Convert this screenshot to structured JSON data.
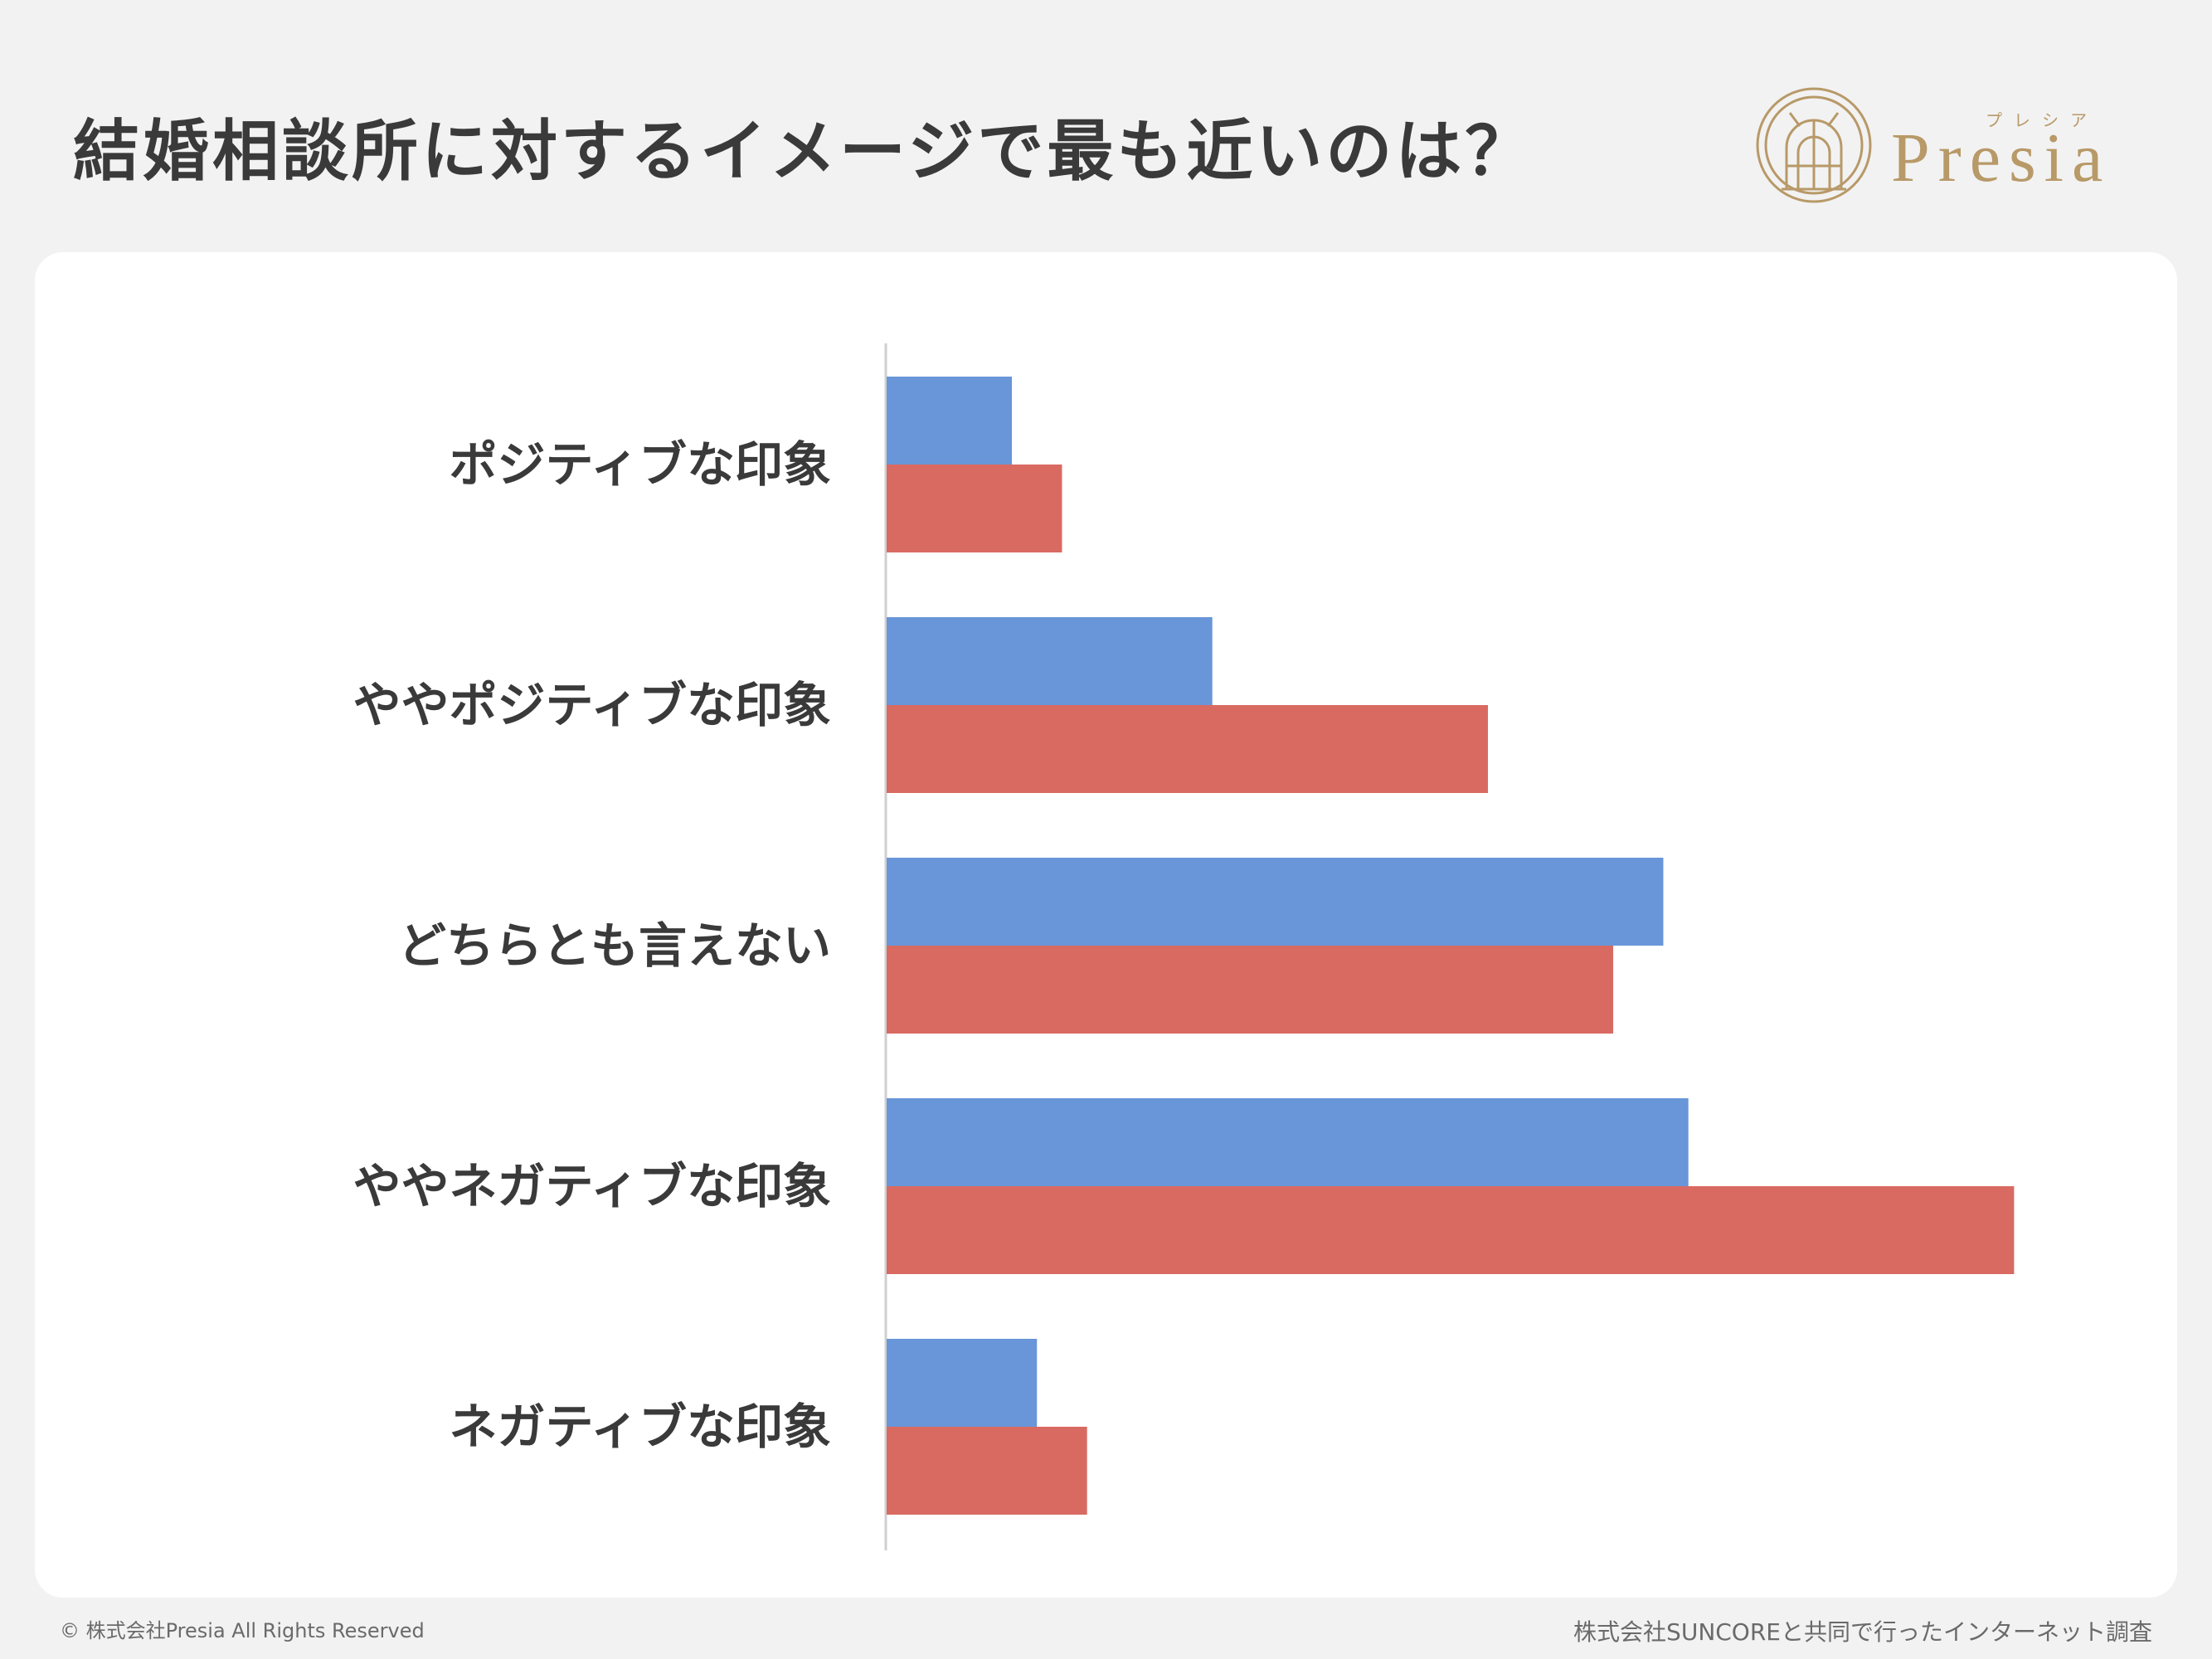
{
  "header": {
    "title": "結婚相談所に対するイメージで最も近いのは？",
    "logo_text": "Presia",
    "logo_kana": "プレシア"
  },
  "chart_data": {
    "type": "bar",
    "orientation": "horizontal",
    "categories": [
      "ポジティブな印象",
      "ややポジティブな印象",
      "どちらとも言えない",
      "ややネガティブな印象",
      "ネガティブな印象"
    ],
    "series": [
      {
        "color": "#6896d8",
        "values": [
          5,
          13,
          31,
          32,
          6
        ]
      },
      {
        "color": "#d96a62",
        "values": [
          7,
          24,
          29,
          45,
          8
        ]
      }
    ],
    "xlim": [
      0,
      48
    ],
    "grid": false,
    "legend": "none"
  },
  "footer": {
    "copyright": "© 株式会社Presia All Rights Reserved",
    "source": "株式会社SUNCOREと共同で行ったインターネット調査"
  }
}
